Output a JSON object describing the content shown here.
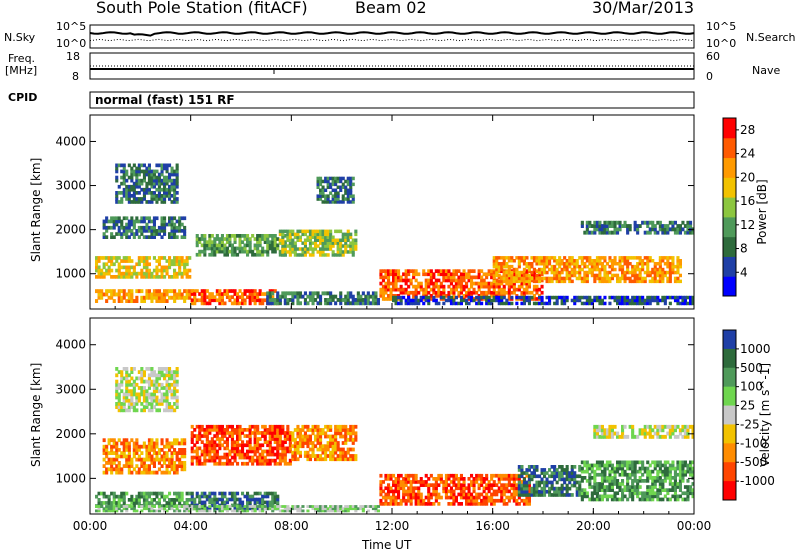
{
  "header": {
    "station": "South Pole Station (fitACF)",
    "beam": "Beam 02",
    "date": "30/Mar/2013"
  },
  "strip_labels": {
    "nsky": "N.Sky",
    "nsearch": "N.Search",
    "freq_line1": "Freq.",
    "freq_line2": "[MHz]",
    "nave": "Nave",
    "cpid": "CPID",
    "cpid_value": "normal (fast) 151 RF",
    "noise_top_left": "10^5",
    "noise_bottom_left": "10^0",
    "noise_top_right": "10^5",
    "noise_bottom_right": "10^0",
    "freq_top": "18",
    "freq_bottom": "8",
    "nave_top": "60",
    "nave_bottom": "0"
  },
  "colors": {
    "power_scale": [
      "#0000ff",
      "#1f3fa6",
      "#2e6b3c",
      "#4f9a5a",
      "#8cc63f",
      "#f2c200",
      "#ff9a00",
      "#ff5a00",
      "#ff0000"
    ],
    "velocity_scale": [
      "#1f3fa6",
      "#2e6b3c",
      "#4f9a5a",
      "#6fd64f",
      "#c8c8c8",
      "#f2c200",
      "#ff8c00",
      "#ff4500",
      "#ff0000"
    ]
  },
  "chart_data": [
    {
      "type": "heatmap",
      "name": "power-panel",
      "ylabel": "Slant Range [km]",
      "xlabel": "",
      "x_ticks": [
        "00:00",
        "04:00",
        "08:00",
        "12:00",
        "16:00",
        "20:00",
        "00:00"
      ],
      "y_ticks": [
        1000,
        2000,
        3000,
        4000
      ],
      "ylim": [
        200,
        4600
      ],
      "xlim_hours": [
        0,
        24
      ],
      "colorbar_label": "Power [dB]",
      "colorbar_ticks": [
        4,
        8,
        12,
        16,
        20,
        24,
        28
      ],
      "colorbar_range": [
        0,
        30
      ],
      "regions": [
        {
          "t0": 0.2,
          "t1": 4.2,
          "r0": 350,
          "r1": 650,
          "v": 24
        },
        {
          "t0": 0.2,
          "t1": 4.0,
          "r0": 900,
          "r1": 1400,
          "v": 18
        },
        {
          "t0": 0.5,
          "t1": 3.8,
          "r0": 1800,
          "r1": 2300,
          "v": 8
        },
        {
          "t0": 1.0,
          "t1": 3.5,
          "r0": 2600,
          "r1": 3500,
          "v": 6
        },
        {
          "t0": 4.0,
          "t1": 7.5,
          "r0": 300,
          "r1": 650,
          "v": 27
        },
        {
          "t0": 4.2,
          "t1": 7.8,
          "r0": 1400,
          "r1": 1900,
          "v": 10
        },
        {
          "t0": 7.5,
          "t1": 10.6,
          "r0": 1400,
          "r1": 2000,
          "v": 14
        },
        {
          "t0": 9.0,
          "t1": 10.5,
          "r0": 2600,
          "r1": 3200,
          "v": 8
        },
        {
          "t0": 7.0,
          "t1": 11.5,
          "r0": 300,
          "r1": 600,
          "v": 9
        },
        {
          "t0": 11.5,
          "t1": 18.0,
          "r0": 400,
          "r1": 1100,
          "v": 25
        },
        {
          "t0": 16.0,
          "t1": 23.5,
          "r0": 800,
          "r1": 1400,
          "v": 22
        },
        {
          "t0": 19.5,
          "t1": 24.0,
          "r0": 1900,
          "r1": 2200,
          "v": 6
        },
        {
          "t0": 12.0,
          "t1": 24.0,
          "r0": 300,
          "r1": 500,
          "v": 5
        }
      ]
    },
    {
      "type": "heatmap",
      "name": "velocity-panel",
      "ylabel": "Slant Range [km]",
      "xlabel": "Time UT",
      "x_ticks": [
        "00:00",
        "04:00",
        "08:00",
        "12:00",
        "16:00",
        "20:00",
        "00:00"
      ],
      "y_ticks": [
        1000,
        2000,
        3000,
        4000
      ],
      "ylim": [
        200,
        4600
      ],
      "xlim_hours": [
        0,
        24
      ],
      "colorbar_label": "Velocity [m s^-1]",
      "colorbar_ticks": [
        "1000",
        "500",
        "100",
        "25",
        "-25",
        "-100",
        "-500",
        "-1000"
      ],
      "regions": [
        {
          "t0": 0.2,
          "t1": 4.0,
          "r0": 350,
          "r1": 700,
          "v": 2
        },
        {
          "t0": 0.5,
          "t1": 3.8,
          "r0": 1100,
          "r1": 1900,
          "v": 6
        },
        {
          "t0": 1.0,
          "t1": 3.5,
          "r0": 2500,
          "r1": 3500,
          "v": 4
        },
        {
          "t0": 4.0,
          "t1": 7.5,
          "r0": 300,
          "r1": 700,
          "v": 1
        },
        {
          "t0": 4.0,
          "t1": 8.0,
          "r0": 1300,
          "r1": 2200,
          "v": 7
        },
        {
          "t0": 8.0,
          "t1": 10.6,
          "r0": 1400,
          "r1": 2200,
          "v": 6
        },
        {
          "t0": 11.5,
          "t1": 17.5,
          "r0": 400,
          "r1": 1100,
          "v": 7
        },
        {
          "t0": 17.0,
          "t1": 19.5,
          "r0": 600,
          "r1": 1300,
          "v": 1
        },
        {
          "t0": 19.5,
          "t1": 24.0,
          "r0": 500,
          "r1": 1400,
          "v": 2
        },
        {
          "t0": 20.0,
          "t1": 24.0,
          "r0": 1900,
          "r1": 2200,
          "v": 4
        },
        {
          "t0": 0.2,
          "t1": 11.5,
          "r0": 250,
          "r1": 400,
          "v": 3
        }
      ]
    }
  ]
}
